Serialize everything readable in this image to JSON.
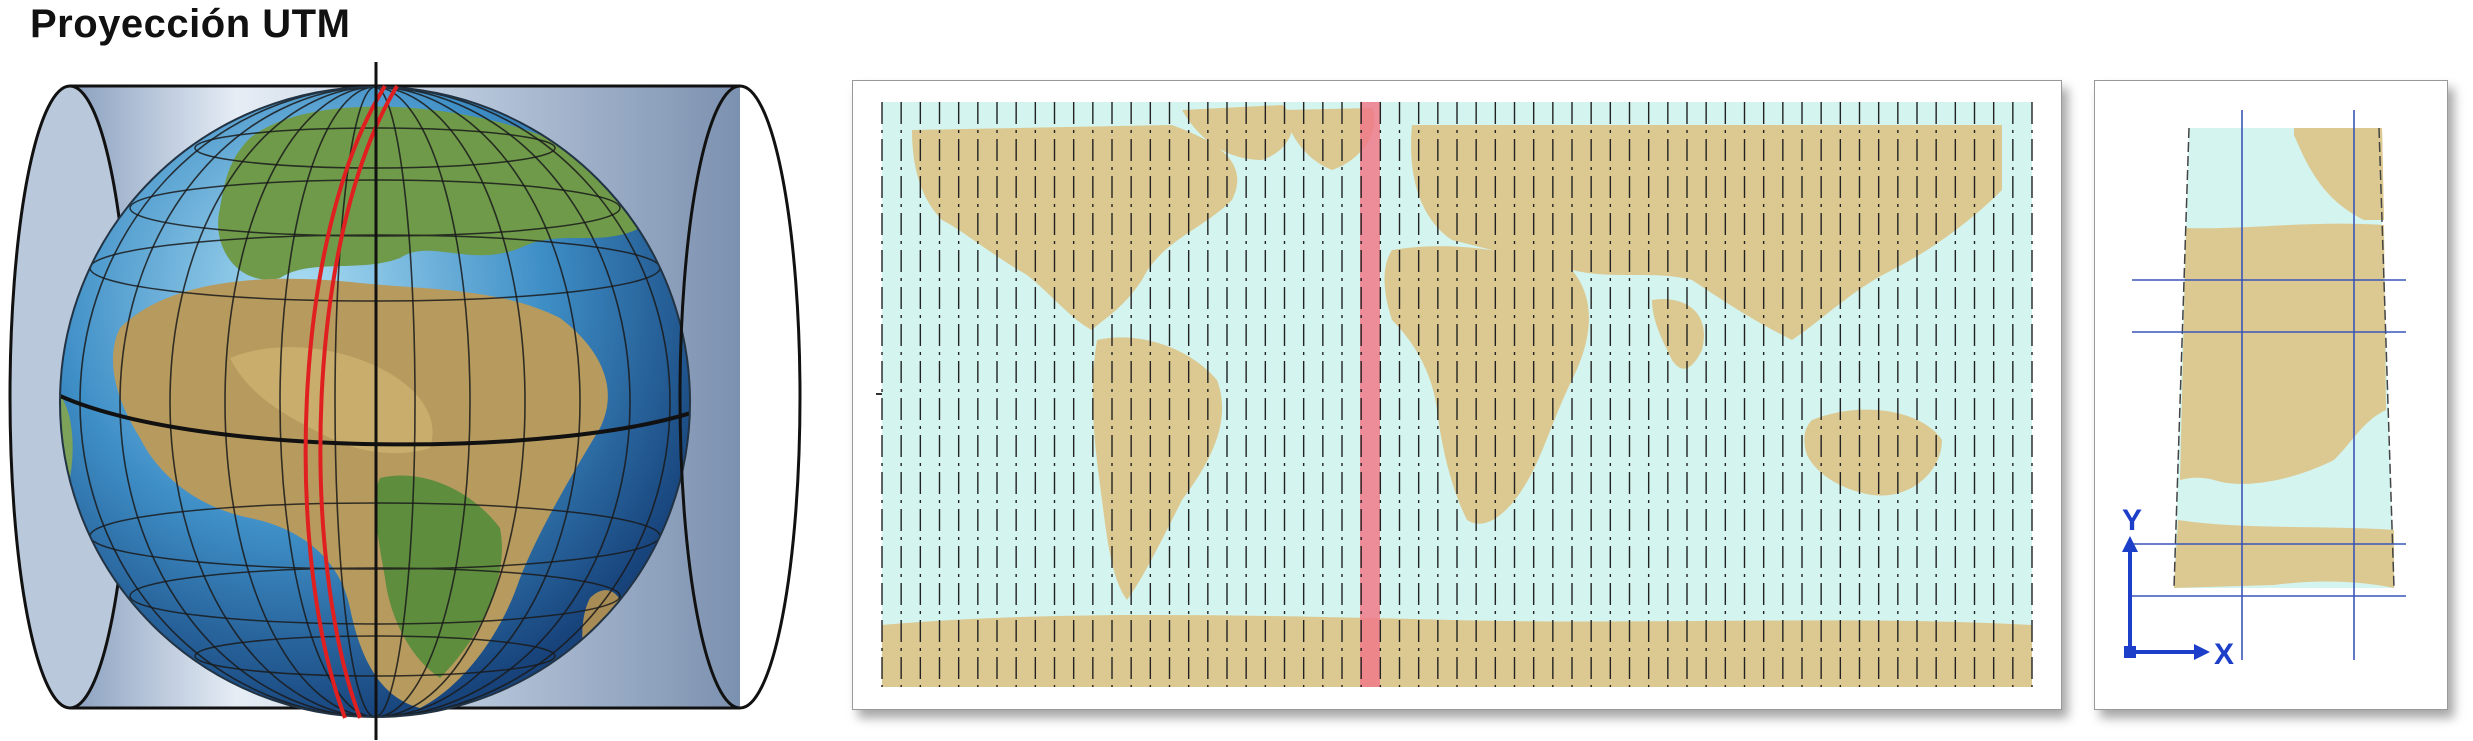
{
  "title": "Proyección UTM",
  "axes": {
    "y_label": "Y",
    "x_label": "X"
  },
  "colors": {
    "land": "#dcc992",
    "ocean": "#d4f4f0",
    "highlight_zone": "#f07a8a",
    "axis_blue": "#1d3ec9",
    "meridian_red": "#e02020",
    "cylinder_fill": "#c9d6e6"
  }
}
